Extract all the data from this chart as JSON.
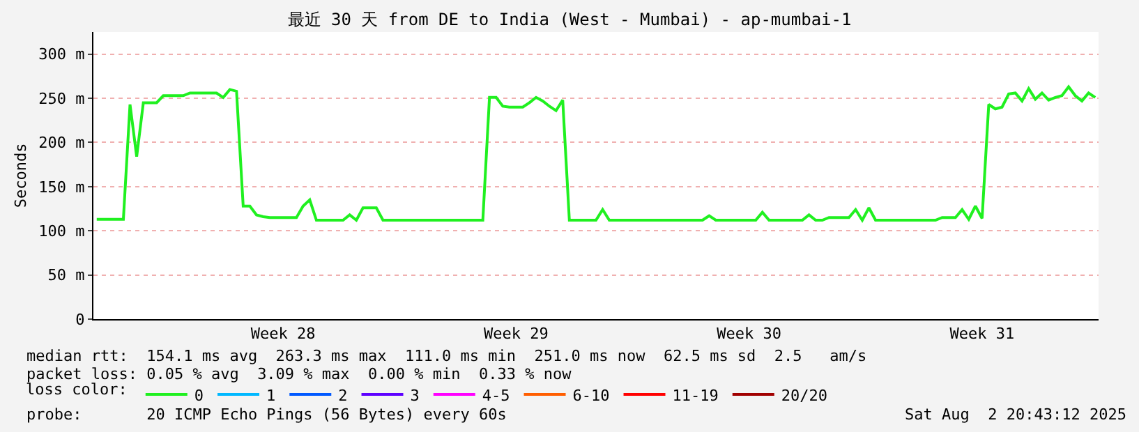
{
  "chart_data": {
    "type": "line",
    "title": "最近 30 天 from DE to India (West - Mumbai) - ap-mumbai-1",
    "ylabel": "Seconds",
    "categories": [
      null,
      null,
      null,
      null,
      null,
      null,
      null,
      null,
      null,
      null,
      null,
      null,
      null,
      null,
      null,
      null,
      null,
      null,
      null,
      null,
      null,
      null,
      null,
      null,
      null,
      null,
      null,
      null,
      "Week 28",
      null,
      null,
      null,
      null,
      null,
      null,
      null,
      null,
      null,
      null,
      null,
      null,
      null,
      null,
      null,
      null,
      null,
      null,
      null,
      null,
      null,
      null,
      null,
      null,
      null,
      null,
      null,
      null,
      null,
      null,
      null,
      null,
      null,
      null,
      "Week 29",
      null,
      null,
      null,
      null,
      null,
      null,
      null,
      null,
      null,
      null,
      null,
      null,
      null,
      null,
      null,
      null,
      null,
      null,
      null,
      null,
      null,
      null,
      null,
      null,
      null,
      null,
      null,
      null,
      null,
      null,
      null,
      null,
      null,
      null,
      "Week 30",
      null,
      null,
      null,
      null,
      null,
      null,
      null,
      null,
      null,
      null,
      null,
      null,
      null,
      null,
      null,
      null,
      null,
      null,
      null,
      null,
      null,
      null,
      null,
      null,
      null,
      null,
      null,
      null,
      null,
      null,
      null,
      null,
      null,
      null,
      "Week 31",
      null,
      null,
      null,
      null,
      null,
      null,
      null,
      null,
      null,
      null,
      null,
      null,
      null,
      null,
      null,
      null,
      null
    ],
    "series": [
      {
        "name": "0",
        "color": "#20f020",
        "values": [
          113,
          113,
          113,
          113,
          113,
          243,
          184,
          245,
          245,
          245,
          253,
          253,
          253,
          253,
          256,
          256,
          256,
          256,
          256,
          251,
          260,
          258,
          128,
          128,
          118,
          116,
          115,
          115,
          115,
          115,
          115,
          128,
          135,
          112,
          112,
          112,
          112,
          112,
          118,
          112,
          126,
          126,
          126,
          112,
          112,
          112,
          112,
          112,
          112,
          112,
          112,
          112,
          112,
          112,
          112,
          112,
          112,
          112,
          112,
          251,
          251,
          241,
          240,
          240,
          240,
          245,
          251,
          247,
          241,
          236,
          248,
          112,
          112,
          112,
          112,
          112,
          124,
          112,
          112,
          112,
          112,
          112,
          112,
          112,
          112,
          112,
          112,
          112,
          112,
          112,
          112,
          112,
          117,
          112,
          112,
          112,
          112,
          112,
          112,
          112,
          121,
          112,
          112,
          112,
          112,
          112,
          112,
          118,
          112,
          112,
          115,
          115,
          115,
          115,
          124,
          112,
          126,
          112,
          112,
          112,
          112,
          112,
          112,
          112,
          112,
          112,
          112,
          115,
          115,
          115,
          124,
          113,
          128,
          114,
          243,
          238,
          240,
          255,
          256,
          247,
          261,
          249,
          256,
          248,
          251,
          253,
          263,
          253,
          247,
          256,
          251
        ]
      },
      {
        "name": "1",
        "color": "#00b8ff",
        "values": [
          null,
          null,
          null,
          null,
          null,
          null,
          null,
          null,
          null,
          null,
          null,
          null,
          null,
          null,
          null,
          null,
          null,
          null,
          null,
          null,
          null,
          null,
          null,
          null,
          null,
          null,
          null,
          null,
          null,
          null,
          null,
          null,
          null,
          null,
          null,
          null,
          null,
          null,
          null,
          null,
          null,
          null,
          null,
          null,
          null,
          null,
          null,
          null,
          null,
          null,
          null,
          null,
          null,
          null,
          null,
          null,
          null,
          null,
          null,
          null,
          null,
          null,
          null,
          null,
          null,
          null,
          null,
          null,
          null,
          null,
          null,
          null,
          null,
          null,
          null,
          null,
          null,
          null,
          null,
          null,
          null,
          null,
          null,
          null,
          null,
          null,
          null,
          null,
          null,
          null,
          null,
          null,
          null,
          null,
          null,
          null,
          null,
          null,
          null,
          null,
          null,
          null,
          null,
          null,
          null,
          null,
          null,
          null,
          null,
          null,
          null,
          null,
          null,
          null,
          null,
          null,
          null,
          null,
          null,
          null,
          null,
          null,
          null,
          null,
          null,
          null,
          null,
          null,
          null,
          null,
          null,
          null,
          null,
          null,
          null,
          null,
          null,
          null,
          null,
          null,
          null,
          null,
          null,
          null,
          null,
          null,
          null,
          null,
          null,
          null,
          null
        ]
      },
      {
        "name": "2",
        "color": "#0059ff",
        "values": [
          null,
          null,
          null,
          null,
          null,
          null,
          null,
          null,
          null,
          null,
          null,
          null,
          null,
          null,
          null,
          null,
          null,
          null,
          null,
          null,
          null,
          null,
          null,
          null,
          null,
          null,
          null,
          null,
          null,
          null,
          null,
          null,
          null,
          null,
          null,
          null,
          null,
          null,
          null,
          null,
          null,
          null,
          null,
          null,
          null,
          null,
          null,
          null,
          null,
          null,
          null,
          null,
          null,
          null,
          null,
          null,
          null,
          null,
          null,
          null,
          null,
          null,
          null,
          null,
          null,
          null,
          null,
          null,
          null,
          null,
          null,
          null,
          null,
          null,
          null,
          null,
          null,
          null,
          null,
          null,
          null,
          null,
          null,
          null,
          null,
          null,
          null,
          null,
          null,
          null,
          null,
          null,
          null,
          null,
          null,
          null,
          null,
          null,
          null,
          null,
          null,
          null,
          null,
          null,
          null,
          null,
          null,
          null,
          null,
          null,
          null,
          null,
          null,
          null,
          null,
          null,
          null,
          null,
          null,
          null,
          null,
          null,
          null,
          null,
          null,
          null,
          null,
          null,
          null,
          null,
          null,
          null,
          null,
          null,
          null,
          null,
          null,
          null,
          null,
          null,
          null,
          null,
          null,
          null,
          null,
          null,
          null,
          null,
          null,
          null,
          null
        ]
      },
      {
        "name": "3",
        "color": "#5e00ff",
        "values": [
          null,
          null,
          null,
          null,
          null,
          null,
          null,
          null,
          null,
          null,
          null,
          null,
          null,
          null,
          null,
          null,
          null,
          null,
          null,
          null,
          null,
          null,
          null,
          null,
          null,
          null,
          null,
          null,
          null,
          null,
          null,
          null,
          null,
          null,
          null,
          null,
          null,
          null,
          null,
          null,
          null,
          null,
          null,
          null,
          null,
          null,
          null,
          null,
          null,
          null,
          null,
          null,
          null,
          null,
          null,
          null,
          null,
          null,
          null,
          null,
          null,
          null,
          null,
          null,
          null,
          null,
          null,
          null,
          null,
          null,
          null,
          null,
          null,
          null,
          null,
          null,
          null,
          null,
          null,
          null,
          null,
          null,
          null,
          null,
          null,
          null,
          null,
          null,
          null,
          null,
          null,
          null,
          null,
          null,
          null,
          null,
          null,
          null,
          null,
          null,
          null,
          null,
          null,
          null,
          null,
          null,
          null,
          null,
          null,
          null,
          null,
          null,
          null,
          null,
          null,
          null,
          null,
          null,
          null,
          null,
          null,
          null,
          null,
          null,
          null,
          null,
          null,
          null,
          null,
          null,
          null,
          null,
          null,
          null,
          null,
          null,
          null,
          null,
          null,
          null,
          null,
          null,
          null,
          null,
          null,
          null,
          null,
          null,
          null,
          null,
          null
        ]
      },
      {
        "name": "4-5",
        "color": "#ff00ff",
        "values": [
          null,
          null,
          null,
          null,
          null,
          null,
          null,
          null,
          null,
          null,
          null,
          null,
          null,
          null,
          null,
          null,
          null,
          null,
          null,
          null,
          null,
          null,
          null,
          null,
          null,
          null,
          null,
          null,
          null,
          null,
          null,
          null,
          null,
          null,
          null,
          null,
          null,
          null,
          null,
          null,
          null,
          null,
          null,
          null,
          null,
          null,
          null,
          null,
          null,
          null,
          null,
          null,
          null,
          null,
          null,
          null,
          null,
          null,
          null,
          null,
          null,
          null,
          null,
          null,
          null,
          null,
          null,
          null,
          null,
          null,
          null,
          null,
          null,
          null,
          null,
          null,
          null,
          null,
          null,
          null,
          null,
          null,
          null,
          null,
          null,
          null,
          null,
          null,
          null,
          null,
          null,
          null,
          null,
          null,
          null,
          null,
          null,
          null,
          null,
          null,
          null,
          null,
          null,
          null,
          null,
          null,
          null,
          null,
          null,
          null,
          null,
          null,
          null,
          null,
          null,
          null,
          null,
          null,
          null,
          null,
          null,
          null,
          null,
          null,
          null,
          null,
          null,
          null,
          null,
          null,
          null,
          null,
          null,
          null,
          null,
          null,
          null,
          null,
          null,
          null,
          null,
          null,
          null,
          null,
          null,
          null,
          null,
          null,
          null,
          null,
          null
        ]
      },
      {
        "name": "6-10",
        "color": "#ff5e00",
        "values": [
          null,
          null,
          null,
          null,
          null,
          null,
          null,
          null,
          null,
          null,
          null,
          null,
          null,
          null,
          null,
          null,
          null,
          null,
          null,
          null,
          null,
          null,
          null,
          null,
          null,
          null,
          null,
          null,
          null,
          null,
          null,
          null,
          null,
          null,
          null,
          null,
          null,
          null,
          null,
          null,
          null,
          null,
          null,
          null,
          null,
          null,
          null,
          null,
          null,
          null,
          null,
          null,
          null,
          null,
          null,
          null,
          null,
          null,
          null,
          null,
          null,
          null,
          null,
          null,
          null,
          null,
          null,
          null,
          null,
          null,
          null,
          null,
          null,
          null,
          null,
          null,
          null,
          null,
          null,
          null,
          null,
          null,
          null,
          null,
          null,
          null,
          null,
          null,
          null,
          null,
          null,
          null,
          null,
          null,
          null,
          null,
          null,
          null,
          null,
          null,
          null,
          null,
          null,
          null,
          null,
          null,
          null,
          null,
          null,
          null,
          null,
          null,
          null,
          null,
          null,
          null,
          null,
          null,
          null,
          null,
          null,
          null,
          null,
          null,
          null,
          null,
          null,
          null,
          null,
          null,
          null,
          null,
          null,
          null,
          null,
          null,
          null,
          null,
          null,
          null,
          null,
          null,
          null,
          null,
          null,
          null,
          null,
          null,
          null,
          null,
          null
        ]
      },
      {
        "name": "11-19",
        "color": "#ff0000",
        "values": [
          null,
          null,
          null,
          null,
          null,
          null,
          null,
          null,
          null,
          null,
          null,
          null,
          null,
          null,
          null,
          null,
          null,
          null,
          null,
          null,
          null,
          null,
          null,
          null,
          null,
          null,
          null,
          null,
          null,
          null,
          null,
          null,
          null,
          null,
          null,
          null,
          null,
          null,
          null,
          null,
          null,
          null,
          null,
          null,
          null,
          null,
          null,
          null,
          null,
          null,
          null,
          null,
          null,
          null,
          null,
          null,
          null,
          null,
          null,
          null,
          null,
          null,
          null,
          null,
          null,
          null,
          null,
          null,
          null,
          null,
          null,
          null,
          null,
          null,
          null,
          null,
          null,
          null,
          null,
          null,
          null,
          null,
          null,
          null,
          null,
          null,
          null,
          null,
          null,
          null,
          null,
          null,
          null,
          null,
          null,
          null,
          null,
          null,
          null,
          null,
          null,
          null,
          null,
          null,
          null,
          null,
          null,
          null,
          null,
          null,
          null,
          null,
          null,
          null,
          null,
          null,
          null,
          null,
          null,
          null,
          null,
          null,
          null,
          null,
          null,
          null,
          null,
          null,
          null,
          null,
          null,
          null,
          null,
          null,
          null,
          null,
          null,
          null,
          null,
          null,
          null,
          null,
          null,
          null,
          null,
          null,
          null,
          null,
          null,
          null,
          null
        ]
      },
      {
        "name": "20/20",
        "color": "#a10000",
        "values": [
          null,
          null,
          null,
          null,
          null,
          null,
          null,
          null,
          null,
          null,
          null,
          null,
          null,
          null,
          null,
          null,
          null,
          null,
          null,
          null,
          null,
          null,
          null,
          null,
          null,
          null,
          null,
          null,
          null,
          null,
          null,
          null,
          null,
          null,
          null,
          null,
          null,
          null,
          null,
          null,
          null,
          null,
          null,
          null,
          null,
          null,
          null,
          null,
          null,
          null,
          null,
          null,
          null,
          null,
          null,
          null,
          null,
          null,
          null,
          null,
          null,
          null,
          null,
          null,
          null,
          null,
          null,
          null,
          null,
          null,
          null,
          null,
          null,
          null,
          null,
          null,
          null,
          null,
          null,
          null,
          null,
          null,
          null,
          null,
          null,
          null,
          null,
          null,
          null,
          null,
          null,
          null,
          null,
          null,
          null,
          null,
          null,
          null,
          null,
          null,
          null,
          null,
          null,
          null,
          null,
          null,
          null,
          null,
          null,
          null,
          null,
          null,
          null,
          null,
          null,
          null,
          null,
          null,
          null,
          null,
          null,
          null,
          null,
          null,
          null,
          null,
          null,
          null,
          null,
          null,
          null,
          null,
          null,
          null,
          null,
          null,
          null,
          null,
          null,
          null,
          null,
          null,
          null,
          null,
          null,
          null,
          null,
          null,
          null,
          null,
          null
        ]
      }
    ],
    "ylim": [
      0,
      325
    ],
    "yticks": [
      0,
      {
        "value": 50,
        "label": "50 m"
      },
      {
        "value": 100,
        "label": "100 m"
      },
      {
        "value": 150,
        "label": "150 m"
      },
      {
        "value": 200,
        "label": "200 m"
      },
      {
        "value": 250,
        "label": "250 m"
      },
      {
        "value": 300,
        "label": "300 m"
      }
    ],
    "grid": "y",
    "legend": "bottom",
    "legend_title": "loss color:",
    "marker": "none",
    "line_style": "solid",
    "annotations": [
      "median rtt:  154.1 ms avg  263.3 ms max  111.0 ms min  251.0 ms now  62.5 ms sd  2.5   am/s",
      "packet loss: 0.05 % avg  3.09 % max  0.00 % min  0.33 % now",
      "probe:       20 ICMP Echo Pings (56 Bytes) every 60s",
      "Sat Aug  2 20:43:12 2025"
    ]
  }
}
